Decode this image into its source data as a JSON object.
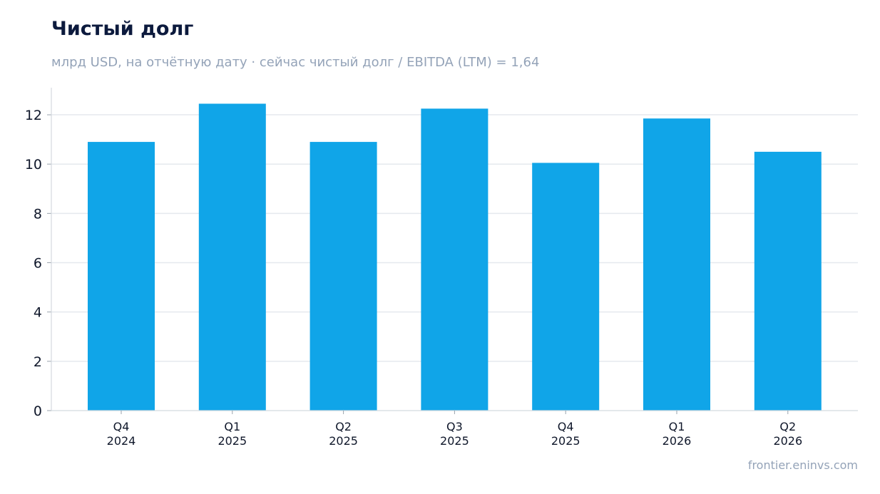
{
  "header": {
    "title": "Чистый долг",
    "subtitle": "млрд USD, на отчётную дату · сейчас чистый долг / EBITDA (LTM) = 1,64"
  },
  "footer": {
    "source": "frontier.eninvs.com"
  },
  "colors": {
    "bar": "#10a5e8",
    "grid": "#e5e9ee",
    "axis": "#d4d9df",
    "title": "#0c1a3d",
    "muted": "#94a3b8"
  },
  "chart_data": {
    "type": "bar",
    "categories": [
      [
        "Q4",
        "2024"
      ],
      [
        "Q1",
        "2025"
      ],
      [
        "Q2",
        "2025"
      ],
      [
        "Q3",
        "2025"
      ],
      [
        "Q4",
        "2025"
      ],
      [
        "Q1",
        "2026"
      ],
      [
        "Q2",
        "2026"
      ]
    ],
    "values": [
      10.9,
      12.45,
      10.9,
      12.25,
      10.05,
      11.85,
      10.5
    ],
    "title": "Чистый долг",
    "subtitle": "млрд USD, на отчётную дату · сейчас чистый долг / EBITDA (LTM) = 1,64",
    "xlabel": "",
    "ylabel": "",
    "ylim": [
      0,
      13.1
    ],
    "yticks": [
      0,
      2,
      4,
      6,
      8,
      10,
      12
    ],
    "grid": true,
    "legend": "none"
  }
}
